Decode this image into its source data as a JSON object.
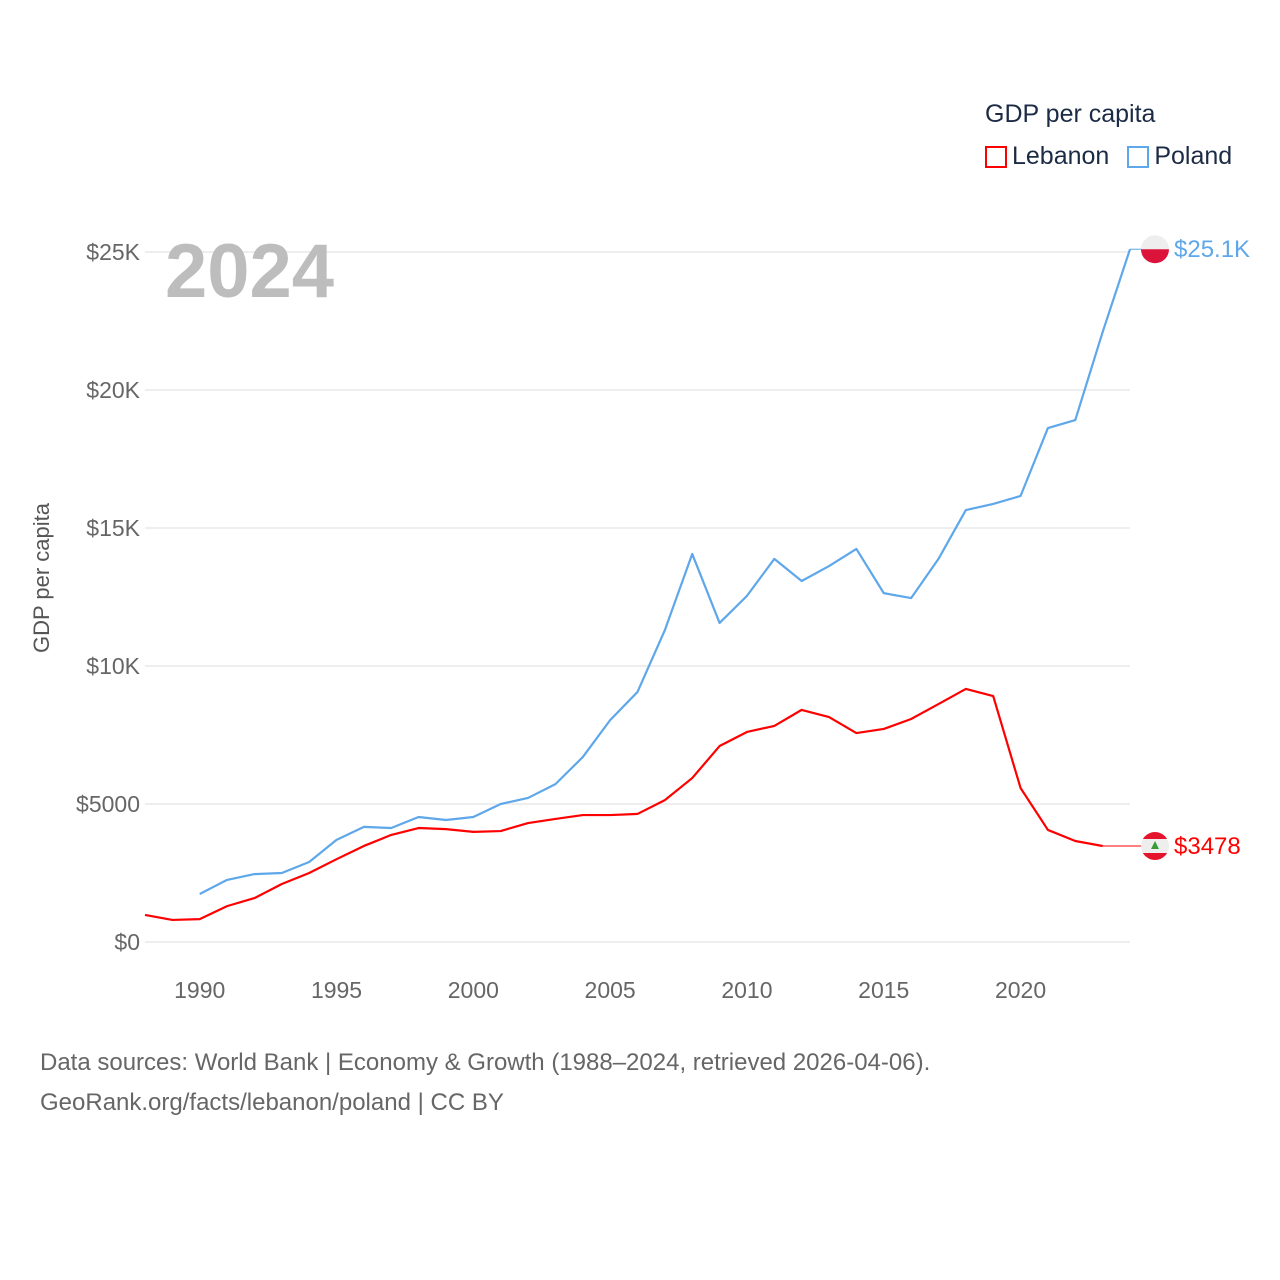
{
  "chart_data": {
    "type": "line",
    "title": "GDP per capita",
    "year_label": "2024",
    "ylabel": "GDP per capita",
    "xlabel": "",
    "xlim": [
      1988,
      2024
    ],
    "ylim": [
      0,
      25000
    ],
    "x_ticks": [
      "1990",
      "1995",
      "2000",
      "2005",
      "2010",
      "2015",
      "2020"
    ],
    "y_ticks": [
      {
        "v": 0,
        "label": "$0"
      },
      {
        "v": 5000,
        "label": "$5000"
      },
      {
        "v": 10000,
        "label": "$10K"
      },
      {
        "v": 15000,
        "label": "$15K"
      },
      {
        "v": 20000,
        "label": "$20K"
      },
      {
        "v": 25000,
        "label": "$25K"
      }
    ],
    "grid": true,
    "legend_placement": "top-right",
    "series": [
      {
        "name": "Lebanon",
        "color": "#ff0000",
        "end_label": "$3478",
        "start_year": 1988,
        "values": [
          980,
          800,
          830,
          1300,
          1590,
          2100,
          2500,
          3000,
          3480,
          3880,
          4130,
          4090,
          3990,
          4020,
          4310,
          4460,
          4600,
          4600,
          4640,
          5140,
          5940,
          7100,
          7610,
          7830,
          8410,
          8150,
          7570,
          7720,
          8080,
          8620,
          9170,
          8910,
          5580,
          4060,
          3660,
          3478
        ]
      },
      {
        "name": "Poland",
        "color": "#5ea7ea",
        "end_label": "$25.1K",
        "start_year": 1990,
        "values": [
          1740,
          2250,
          2460,
          2500,
          2900,
          3700,
          4170,
          4130,
          4530,
          4420,
          4530,
          5000,
          5220,
          5720,
          6700,
          8040,
          9060,
          11300,
          14060,
          11560,
          12540,
          13880,
          13080,
          13620,
          14240,
          12640,
          12460,
          13880,
          15650,
          15870,
          16160,
          18620,
          18910,
          22100,
          25100
        ]
      }
    ]
  },
  "source": {
    "line1": "Data sources: World Bank | Economy & Growth (1988–2024, retrieved 2026-04-06).",
    "line2": "GeoRank.org/facts/lebanon/poland | CC BY"
  }
}
